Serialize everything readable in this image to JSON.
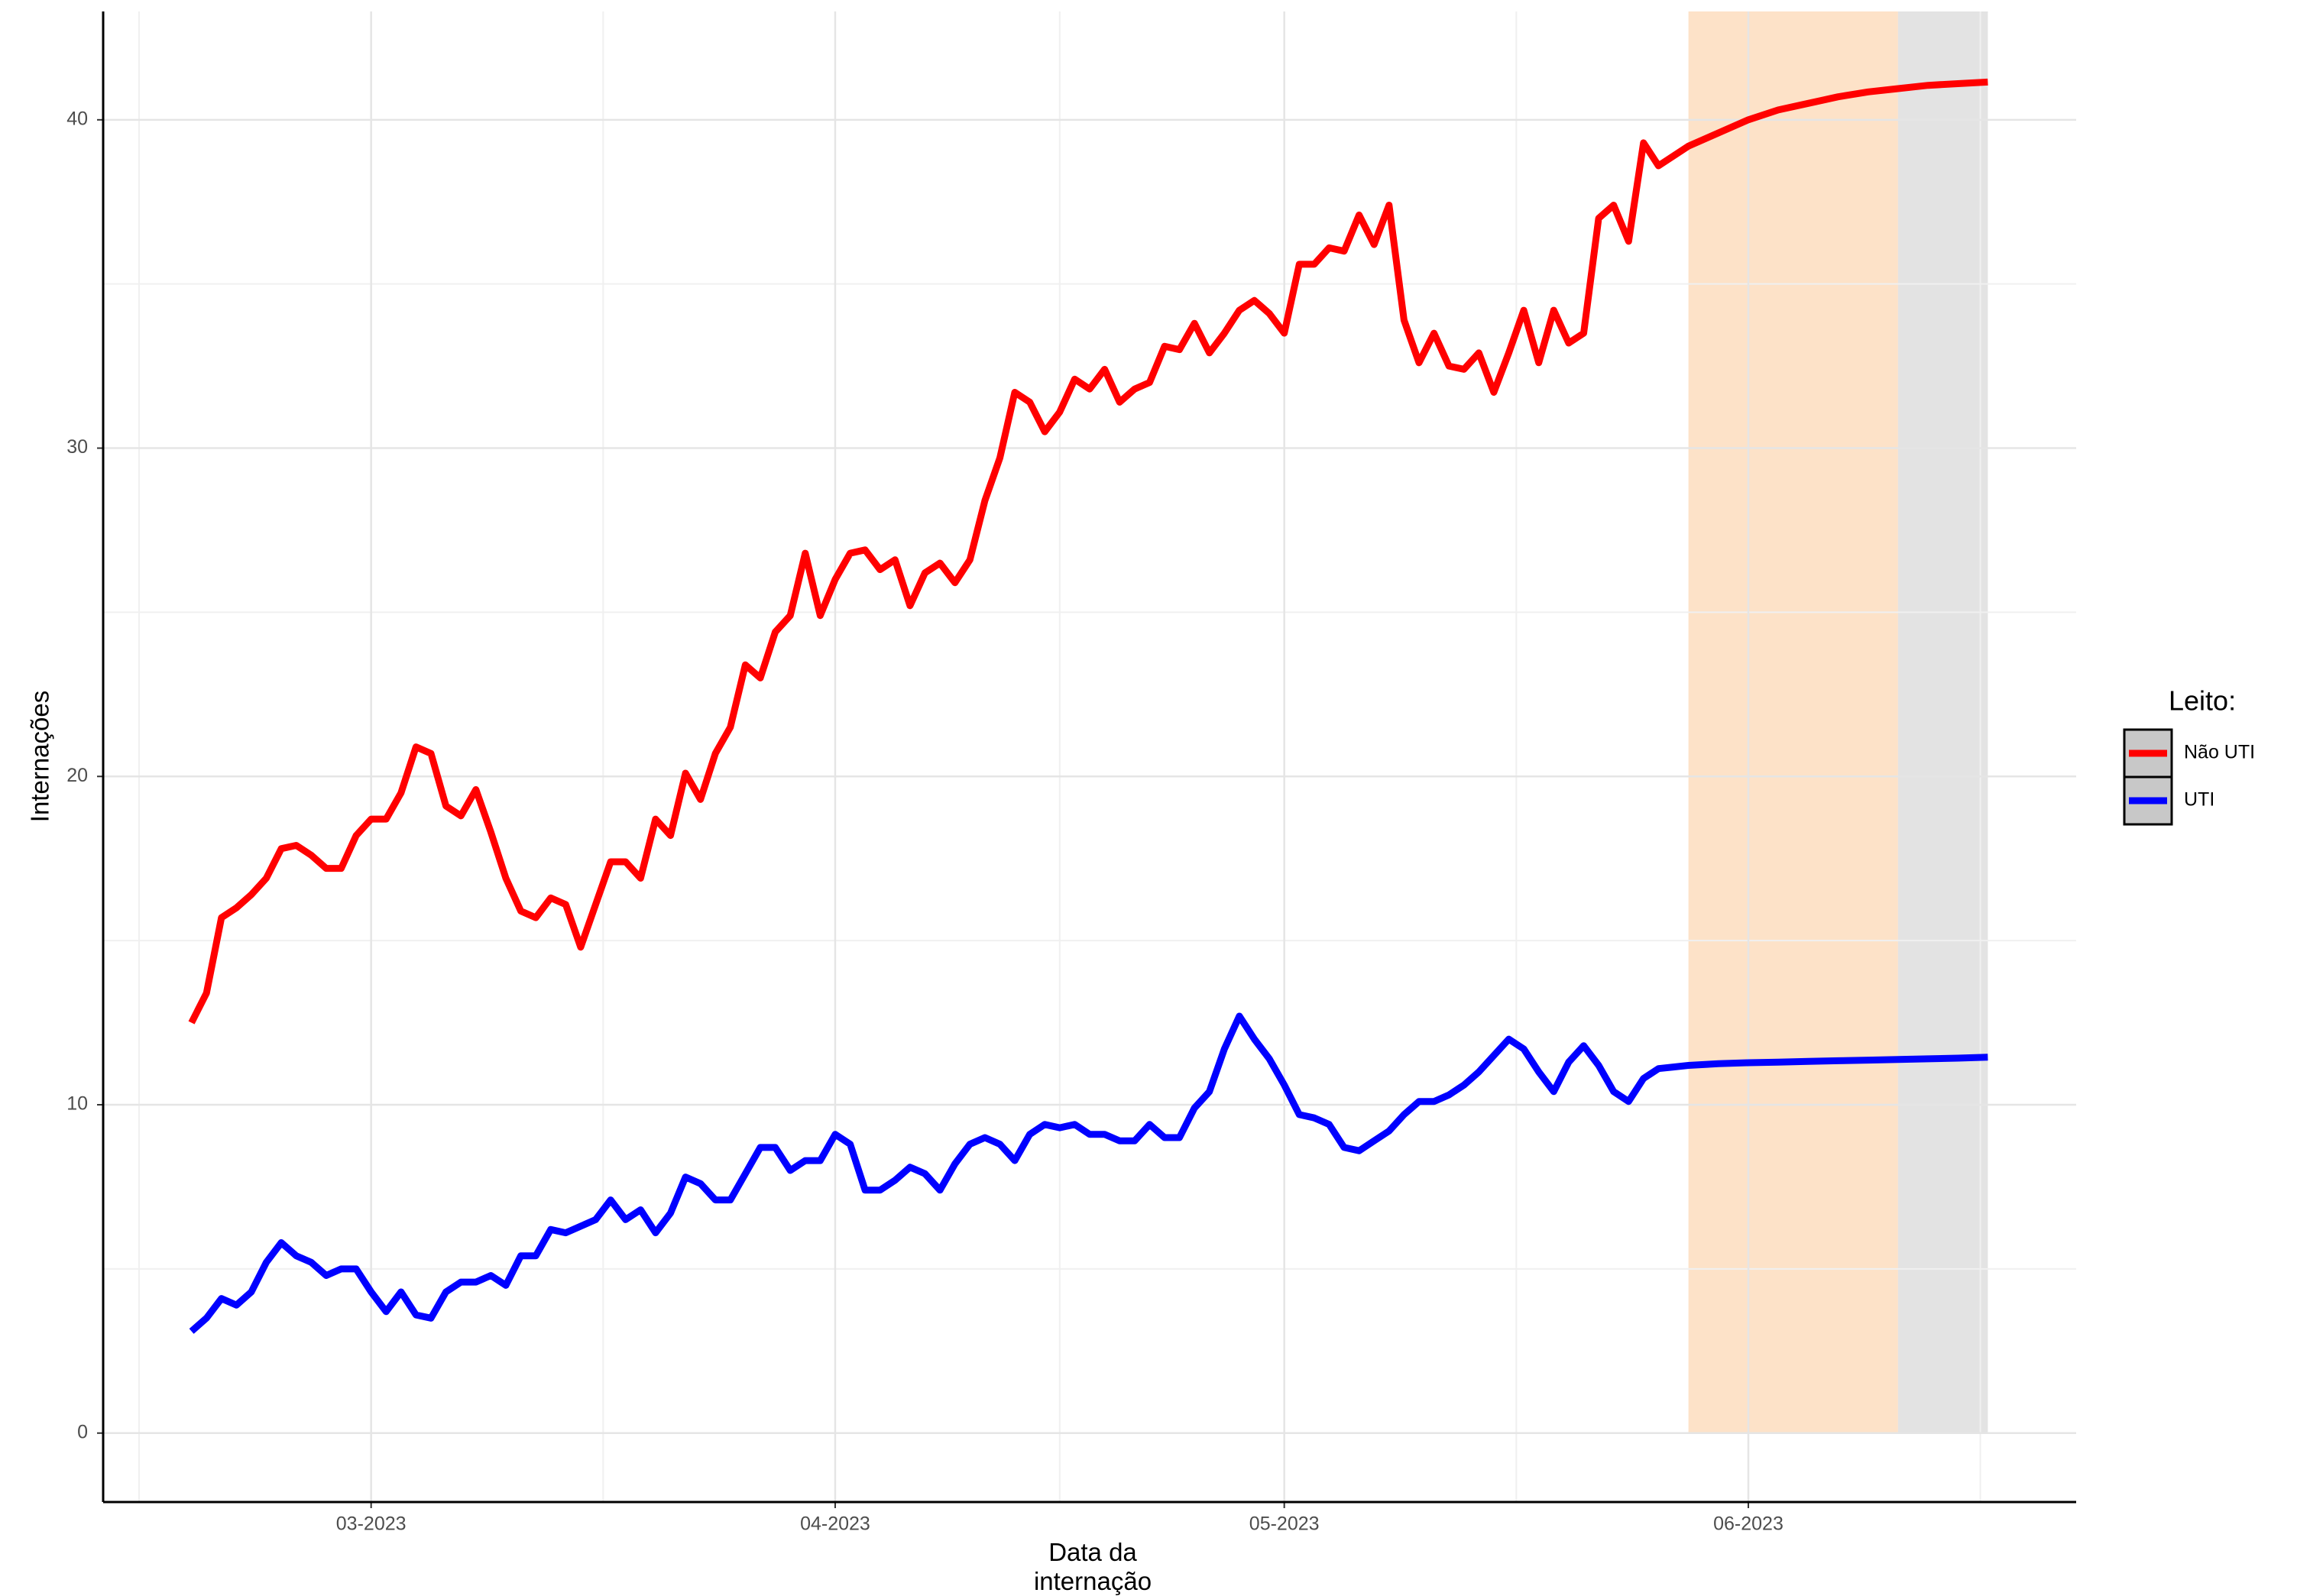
{
  "chart_data": {
    "type": "line",
    "x_label": "Data da internação",
    "y_label": "Internações",
    "legend_title": "Leito:",
    "legend_position": "right",
    "grid": true,
    "xlim": [
      -17.9,
      113.9
    ],
    "ylim": [
      -2.1,
      43.3
    ],
    "xticks": [
      {
        "value": 0,
        "label": "03-2023"
      },
      {
        "value": 31,
        "label": "04-2023"
      },
      {
        "value": 61,
        "label": "05-2023"
      },
      {
        "value": 92,
        "label": "06-2023"
      }
    ],
    "yticks": [
      0,
      10,
      20,
      30,
      40
    ],
    "xminor": [
      -15.5,
      15.5,
      46,
      76.5,
      107.5
    ],
    "yminor": [
      5,
      15,
      25,
      35
    ],
    "bands": [
      {
        "start": 88,
        "end": 102,
        "color": "#fde2c8"
      },
      {
        "start": 102,
        "end": 108,
        "color": "#e3e3e3"
      }
    ],
    "x": [
      -12,
      -11,
      -10,
      -9,
      -8,
      -7,
      -6,
      -5,
      -4,
      -3,
      -2,
      -1,
      0,
      1,
      2,
      3,
      4,
      5,
      6,
      7,
      8,
      9,
      10,
      11,
      12,
      13,
      14,
      15,
      16,
      17,
      18,
      19,
      20,
      21,
      22,
      23,
      24,
      25,
      26,
      27,
      28,
      29,
      30,
      31,
      32,
      33,
      34,
      35,
      36,
      37,
      38,
      39,
      40,
      41,
      42,
      43,
      44,
      45,
      46,
      47,
      48,
      49,
      50,
      51,
      52,
      53,
      54,
      55,
      56,
      57,
      58,
      59,
      60,
      61,
      62,
      63,
      64,
      65,
      66,
      67,
      68,
      69,
      70,
      71,
      72,
      73,
      74,
      75,
      76,
      77,
      78,
      79,
      80,
      81,
      82,
      83,
      84,
      85,
      86,
      87,
      88,
      90,
      92,
      94,
      96,
      98,
      100,
      102,
      104,
      106,
      108
    ],
    "series": [
      {
        "name": "Não UTI",
        "color": "#ff0000",
        "values": [
          12.5,
          13.4,
          15.7,
          16.0,
          16.4,
          16.9,
          17.8,
          17.9,
          17.6,
          17.2,
          17.2,
          18.2,
          18.7,
          18.7,
          19.5,
          20.9,
          20.7,
          19.1,
          18.8,
          19.6,
          18.3,
          16.9,
          15.9,
          15.7,
          16.3,
          16.1,
          14.8,
          16.1,
          17.4,
          17.4,
          16.9,
          18.7,
          18.2,
          20.1,
          19.3,
          20.7,
          21.5,
          23.4,
          23.0,
          24.4,
          24.9,
          26.8,
          24.9,
          26.0,
          26.8,
          26.9,
          26.3,
          26.6,
          25.2,
          26.2,
          26.5,
          25.9,
          26.6,
          28.4,
          29.7,
          31.7,
          31.4,
          30.5,
          31.1,
          32.1,
          31.8,
          32.4,
          31.4,
          31.8,
          32.0,
          33.1,
          33.0,
          33.8,
          32.9,
          33.5,
          34.2,
          34.5,
          34.1,
          33.5,
          35.6,
          35.6,
          36.1,
          36.0,
          37.1,
          36.2,
          37.4,
          33.9,
          32.6,
          33.5,
          32.5,
          32.4,
          32.9,
          31.7,
          32.9,
          34.2,
          32.6,
          34.2,
          33.2,
          33.5,
          37.0,
          37.4,
          36.3,
          39.3,
          38.6,
          38.9,
          39.2,
          39.6,
          40.0,
          40.3,
          40.5,
          40.7,
          40.85,
          40.95,
          41.05,
          41.1,
          41.15
        ]
      },
      {
        "name": "UTI",
        "color": "#0000ff",
        "values": [
          3.1,
          3.5,
          4.1,
          3.9,
          4.3,
          5.2,
          5.8,
          5.4,
          5.2,
          4.8,
          5.0,
          5.0,
          4.3,
          3.7,
          4.3,
          3.6,
          3.5,
          4.3,
          4.6,
          4.6,
          4.8,
          4.5,
          5.4,
          5.4,
          6.2,
          6.1,
          6.3,
          6.5,
          7.1,
          6.5,
          6.8,
          6.1,
          6.7,
          7.8,
          7.6,
          7.1,
          7.1,
          7.9,
          8.7,
          8.7,
          8.0,
          8.3,
          8.3,
          9.1,
          8.8,
          7.4,
          7.4,
          7.7,
          8.1,
          7.9,
          7.4,
          8.2,
          8.8,
          9.0,
          8.8,
          8.3,
          9.1,
          9.4,
          9.3,
          9.4,
          9.1,
          9.1,
          8.9,
          8.9,
          9.4,
          9.0,
          9.0,
          9.9,
          10.4,
          11.7,
          12.7,
          12.0,
          11.4,
          10.6,
          9.7,
          9.6,
          9.4,
          8.7,
          8.6,
          8.9,
          9.2,
          9.7,
          10.1,
          10.1,
          10.3,
          10.6,
          11.0,
          11.5,
          12.0,
          11.7,
          11.0,
          10.4,
          11.3,
          11.8,
          11.2,
          10.4,
          10.1,
          10.8,
          11.1,
          11.15,
          11.2,
          11.25,
          11.28,
          11.3,
          11.32,
          11.34,
          11.36,
          11.38,
          11.4,
          11.42,
          11.45
        ]
      }
    ]
  }
}
